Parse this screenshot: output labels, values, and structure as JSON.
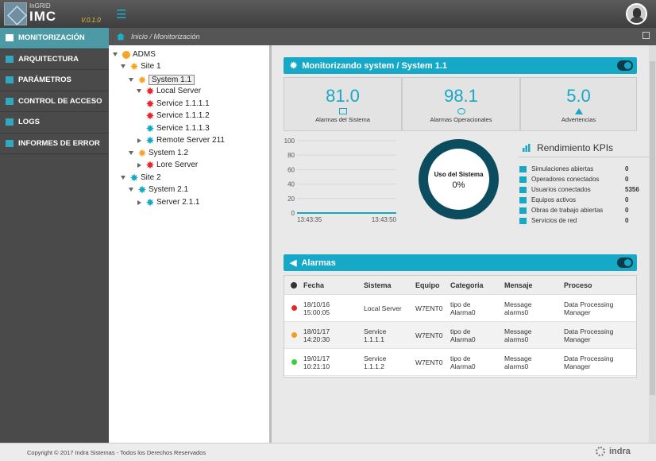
{
  "header": {
    "brand_small": "InGRID",
    "brand_big": "IMC",
    "version": "V.0.1.0"
  },
  "sidebar": {
    "items": [
      {
        "label": "MONITORIZACIÓN",
        "icon": "monitor-icon",
        "active": true
      },
      {
        "label": "ARQUITECTURA",
        "icon": "architecture-icon"
      },
      {
        "label": "PARÁMETROS",
        "icon": "parameters-icon"
      },
      {
        "label": "CONTROL DE ACCESO",
        "icon": "lock-icon"
      },
      {
        "label": "LOGS",
        "icon": "logs-icon"
      },
      {
        "label": "INFORMES DE ERROR",
        "icon": "warning-icon"
      }
    ]
  },
  "breadcrumb": "Inicio / Monitorización",
  "tree": [
    {
      "label": "ADMS",
      "status": "globe"
    },
    {
      "label": "Site 1",
      "status": "orange"
    },
    {
      "label": "System 1.1",
      "status": "orange",
      "selected": true
    },
    {
      "label": "Local Server",
      "status": "red"
    },
    {
      "label": "Service 1.1.1.1",
      "status": "red"
    },
    {
      "label": "Service 1.1.1.2",
      "status": "red"
    },
    {
      "label": "Service 1.1.1.3",
      "status": "cyan"
    },
    {
      "label": "Remote Server 211",
      "status": "cyan"
    },
    {
      "label": "System 1.2",
      "status": "orange"
    },
    {
      "label": "Lore Server",
      "status": "red"
    },
    {
      "label": "Site 2",
      "status": "cyan"
    },
    {
      "label": "System 2.1",
      "status": "cyan"
    },
    {
      "label": "Server 2.1.1",
      "status": "cyan"
    }
  ],
  "monitor": {
    "title": "Monitorizando system / System 1.1",
    "kpis": [
      {
        "value": "81.0",
        "label": "Alarmas del Sistema",
        "icon": "folder-icon"
      },
      {
        "value": "98.1",
        "label": "Alarmas Operacionales",
        "icon": "clock-icon"
      },
      {
        "value": "5.0",
        "label": "Advertencias",
        "icon": "warning-icon"
      }
    ],
    "donut": {
      "title": "Uso del Sistema",
      "value": "0%"
    },
    "kpi_title": "Rendimiento KPIs",
    "kpi_list": [
      {
        "label": "Simulaciones abiertas",
        "value": "0",
        "icon": "plane-icon"
      },
      {
        "label": "Operadores conectados",
        "value": "0",
        "icon": "headset-icon"
      },
      {
        "label": "Usuarios conectados",
        "value": "5356",
        "icon": "users-icon"
      },
      {
        "label": "Equipos activos",
        "value": "0",
        "icon": "desktop-icon"
      },
      {
        "label": "Obras de trabajo abiertas",
        "value": "0",
        "icon": "wrench-icon"
      },
      {
        "label": "Servicios de red",
        "value": "0",
        "icon": "globe-icon"
      }
    ]
  },
  "chart_data": {
    "type": "line",
    "x": [
      "13:43:35",
      "13:43:50"
    ],
    "y_ticks": [
      0,
      20,
      40,
      60,
      80,
      100
    ],
    "ylim": [
      0,
      100
    ],
    "series": [
      {
        "values": [
          0,
          0
        ]
      }
    ]
  },
  "alarms": {
    "title": "Alarmas",
    "columns": [
      "Fecha",
      "Sistema",
      "Equipo",
      "Categoria",
      "Mensaje",
      "Proceso"
    ],
    "rows": [
      {
        "status_color": "#e8262a",
        "fecha": [
          "18/10/16",
          "15:00:05"
        ],
        "sistema": [
          "Local Server",
          ""
        ],
        "equipo": "W7ENT0",
        "categoria": [
          "tipo de",
          "Alarma0"
        ],
        "mensaje": [
          "Message",
          "alarms0"
        ],
        "proceso": [
          "Data Processing",
          "Manager"
        ]
      },
      {
        "status_color": "#f39c1f",
        "fecha": [
          "18/01/17",
          "14:20:30"
        ],
        "sistema": [
          "Service",
          "1.1.1.1"
        ],
        "equipo": "W7ENT0",
        "categoria": [
          "tipo de",
          "Alarma0"
        ],
        "mensaje": [
          "Message",
          "alarms0"
        ],
        "proceso": [
          "Data Processing",
          "Manager"
        ]
      },
      {
        "status_color": "#33d13a",
        "fecha": [
          "19/01/17",
          "10:21:10"
        ],
        "sistema": [
          "Service",
          "1.1.1.2"
        ],
        "equipo": "W7ENT0",
        "categoria": [
          "tipo de",
          "Alarma0"
        ],
        "mensaje": [
          "Message",
          "alarms0"
        ],
        "proceso": [
          "Data Processing",
          "Manager"
        ]
      }
    ]
  },
  "footer": {
    "copyright": "Copyright © 2017 Indra Sistemas - Todos los Derechos Reservados",
    "brand": "indra"
  },
  "colors": {
    "accent": "#16a9c7",
    "dark_teal": "#0b4d5e",
    "sidebar": "#4a4a4a"
  }
}
